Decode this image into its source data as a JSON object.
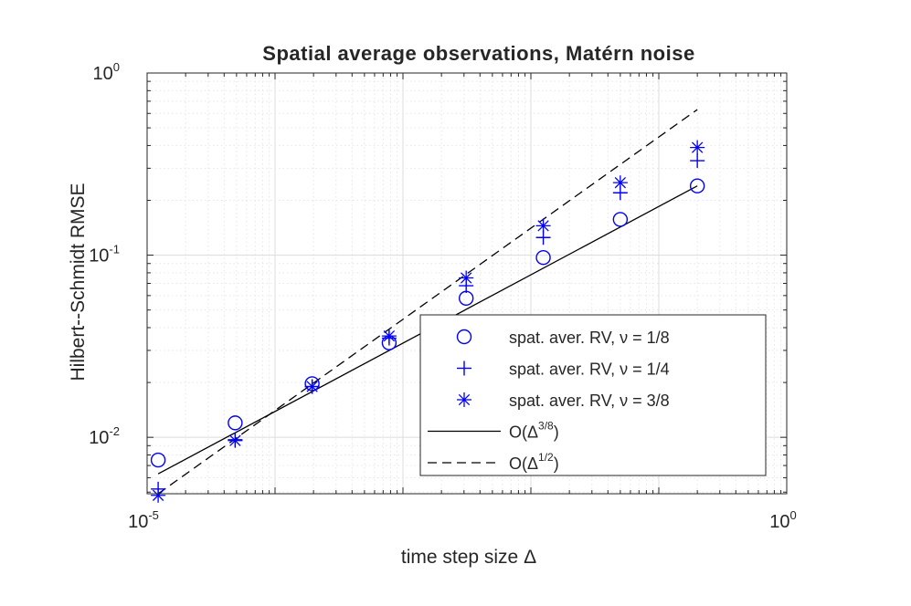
{
  "chart_data": {
    "type": "scatter",
    "title": "Spatial average observations, Matérn noise",
    "xlabel": "time step size",
    "xlabel_symbol": "Δ",
    "ylabel": "Hilbert--Schmidt RMSE",
    "xscale": "log",
    "yscale": "log",
    "xlim": [
      1e-05,
      1
    ],
    "ylim": [
      0.0049,
      1
    ],
    "grid": true,
    "x_ticks": [
      {
        "value": 1e-05,
        "base": "10",
        "exp": "-5"
      },
      {
        "value": 1,
        "base": "10",
        "exp": "0"
      }
    ],
    "y_ticks": [
      {
        "value": 0.01,
        "base": "10",
        "exp": "-2"
      },
      {
        "value": 0.1,
        "base": "10",
        "exp": "-1"
      },
      {
        "value": 1,
        "base": "10",
        "exp": "0"
      }
    ],
    "x": [
      1.22e-05,
      4.88e-05,
      0.000195,
      0.00078,
      0.00312,
      0.0125,
      0.05,
      0.2
    ],
    "series": [
      {
        "name": "spat. aver. RV, ν = 1/8",
        "marker": "circle",
        "color": "#0000ff",
        "values": [
          0.0075,
          0.012,
          0.0197,
          0.033,
          0.058,
          0.097,
          0.157,
          0.24
        ]
      },
      {
        "name": "spat. aver. RV, ν = 1/4",
        "marker": "plus",
        "color": "#0000ff",
        "values": [
          0.0052,
          0.0097,
          0.019,
          0.035,
          0.068,
          0.125,
          0.22,
          0.33
        ]
      },
      {
        "name": "spat. aver. RV, ν = 3/8",
        "marker": "asterisk",
        "color": "#0000ff",
        "values": [
          0.0048,
          0.0096,
          0.019,
          0.036,
          0.075,
          0.145,
          0.25,
          0.39
        ]
      }
    ],
    "ref_lines": [
      {
        "name": "O(Δ^{3/8})",
        "base_text": "O(Δ",
        "sup_text": "3/8",
        "close_text": ")",
        "style": "solid",
        "color": "#000000",
        "x": [
          1.22e-05,
          0.2
        ],
        "y": [
          0.0063,
          0.24
        ]
      },
      {
        "name": "O(Δ^{1/2})",
        "base_text": "O(Δ",
        "sup_text": "1/2",
        "close_text": ")",
        "style": "dashed",
        "color": "#000000",
        "x": [
          1.22e-05,
          0.2
        ],
        "y": [
          0.0049,
          0.63
        ]
      }
    ],
    "legend_position": "lower-right"
  }
}
